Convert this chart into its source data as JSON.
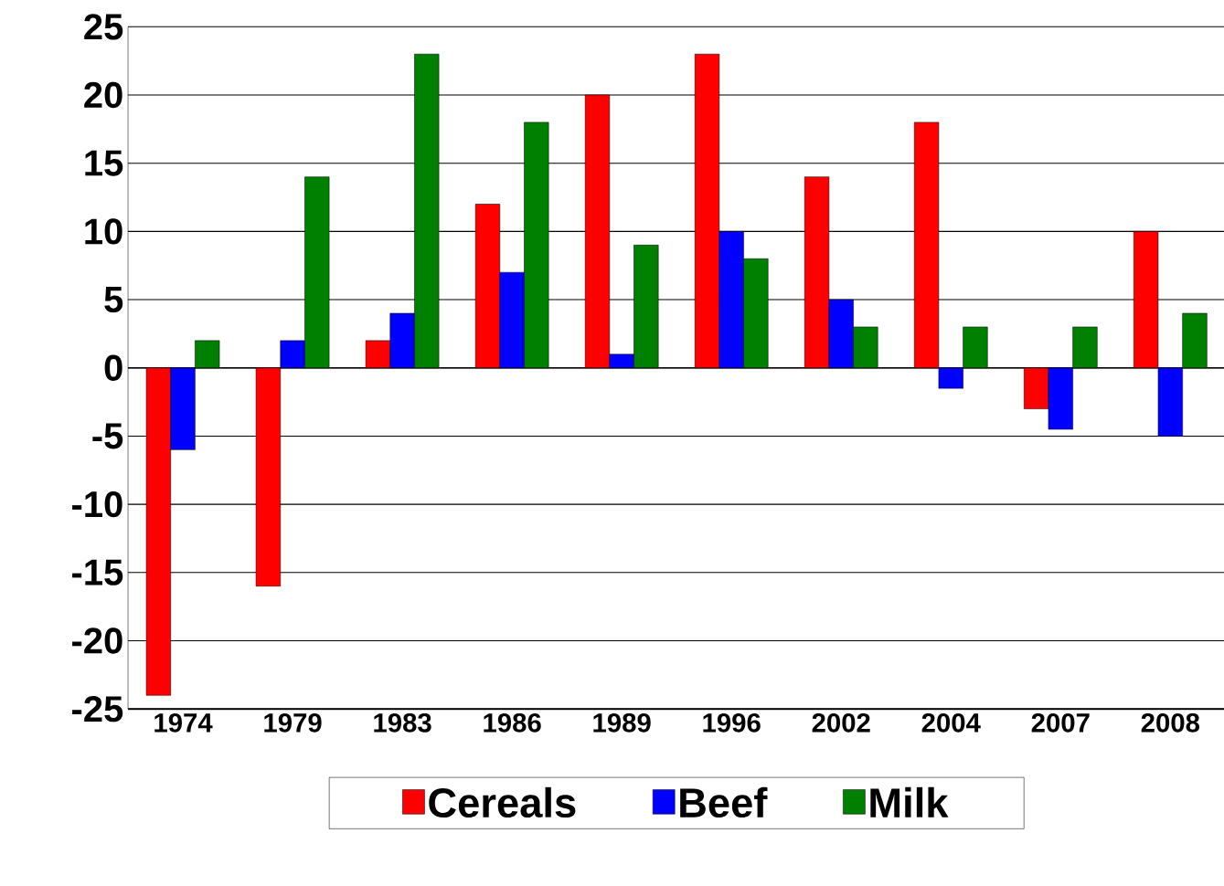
{
  "chart_data": {
    "type": "bar",
    "categories": [
      "1974",
      "1979",
      "1983",
      "1986",
      "1989",
      "1996",
      "2002",
      "2004",
      "2007",
      "2008"
    ],
    "series": [
      {
        "name": "Cereals",
        "color": "#ff0000",
        "values": [
          -24,
          -16,
          2,
          12,
          20,
          23,
          14,
          18,
          -3,
          10
        ]
      },
      {
        "name": "Beef",
        "color": "#0000ff",
        "values": [
          -6,
          2,
          4,
          7,
          1,
          10,
          5,
          -1.5,
          -4.5,
          -5
        ]
      },
      {
        "name": "Milk",
        "color": "#008000",
        "values": [
          2,
          14,
          23,
          18,
          9,
          8,
          3,
          3,
          3,
          4
        ]
      }
    ],
    "ylim": [
      -25,
      25
    ],
    "yticks": [
      -25,
      -20,
      -15,
      -10,
      -5,
      0,
      5,
      10,
      15,
      20,
      25
    ],
    "grid": "y",
    "legend": "bottom"
  }
}
